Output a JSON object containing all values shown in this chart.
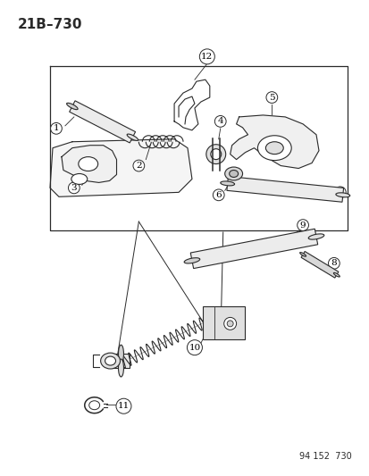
{
  "title": "21B–730",
  "footnote": "94 152  730",
  "bg_color": "#ffffff",
  "line_color": "#2a2a2a",
  "fig_width": 4.14,
  "fig_height": 5.33,
  "dpi": 100,
  "title_fontsize": 11,
  "label_fontsize": 7.5,
  "footnote_fontsize": 7
}
